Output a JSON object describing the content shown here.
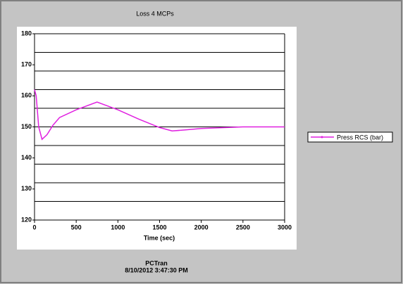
{
  "chart_data": {
    "type": "line",
    "title": "Loss 4 MCPs",
    "xlabel": "Time (sec)",
    "x": [
      0,
      20,
      50,
      90,
      150,
      220,
      300,
      500,
      750,
      1000,
      1250,
      1500,
      1650,
      1800,
      2000,
      2500,
      3000
    ],
    "series": [
      {
        "name": "Press RCS (bar)",
        "color": "#e020e0",
        "values": [
          162,
          160,
          150,
          146,
          147.5,
          150.5,
          153,
          155.5,
          158,
          155.5,
          152.5,
          149.8,
          148.7,
          149,
          149.5,
          150,
          150
        ]
      }
    ],
    "xlim": [
      0,
      3000
    ],
    "xticks": [
      0,
      500,
      1000,
      1500,
      2000,
      2500,
      3000
    ],
    "ylim": [
      120,
      180
    ],
    "yticks": [
      120,
      130,
      140,
      150,
      160,
      170,
      180
    ],
    "ygrid": [
      126,
      132,
      138,
      144,
      150,
      156,
      162,
      168,
      174
    ],
    "legend": "right",
    "footer": [
      "PCTran",
      "8/10/2012 3:47:30 PM"
    ]
  }
}
